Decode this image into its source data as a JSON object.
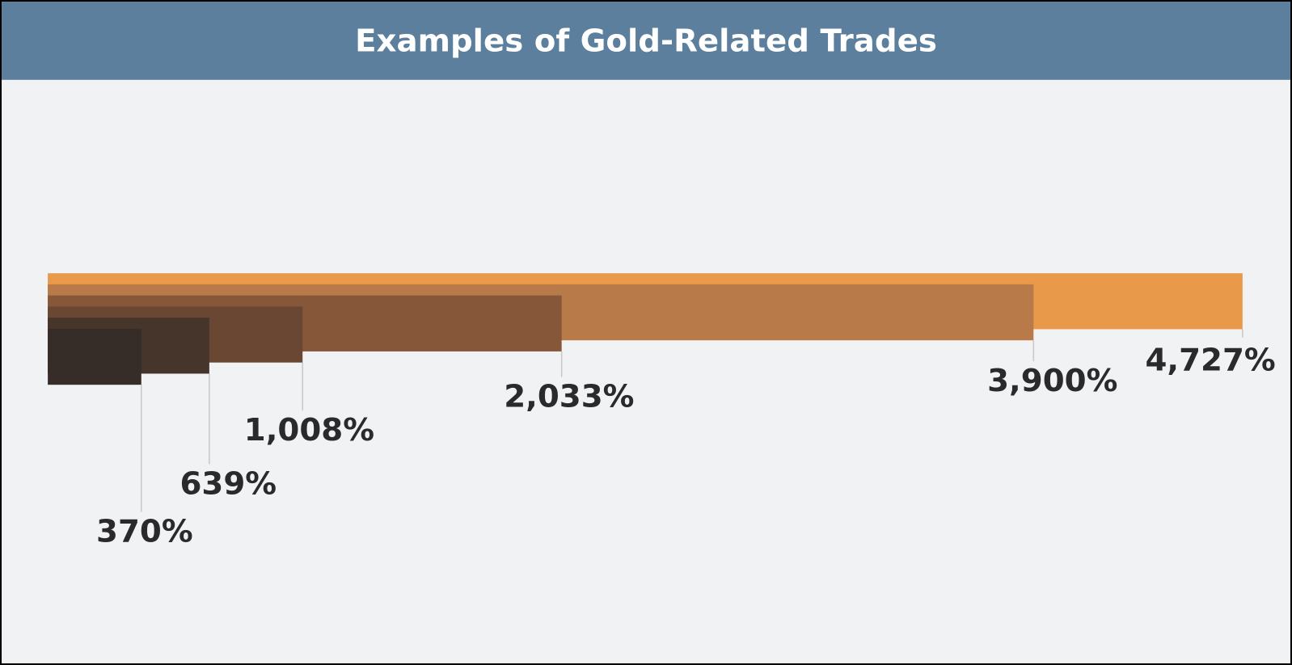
{
  "chart_data": {
    "type": "bar",
    "title": "Examples of Gold-Related Trades",
    "values": [
      4727,
      3900,
      2033,
      1008,
      639,
      370
    ],
    "value_labels": [
      "4,727%",
      "3,900%",
      "2,033%",
      "1,008%",
      "639%",
      "370%"
    ],
    "colors": [
      "#e8994a",
      "#b87a48",
      "#87573a",
      "#6a4733",
      "#45352b",
      "#372d28"
    ]
  }
}
